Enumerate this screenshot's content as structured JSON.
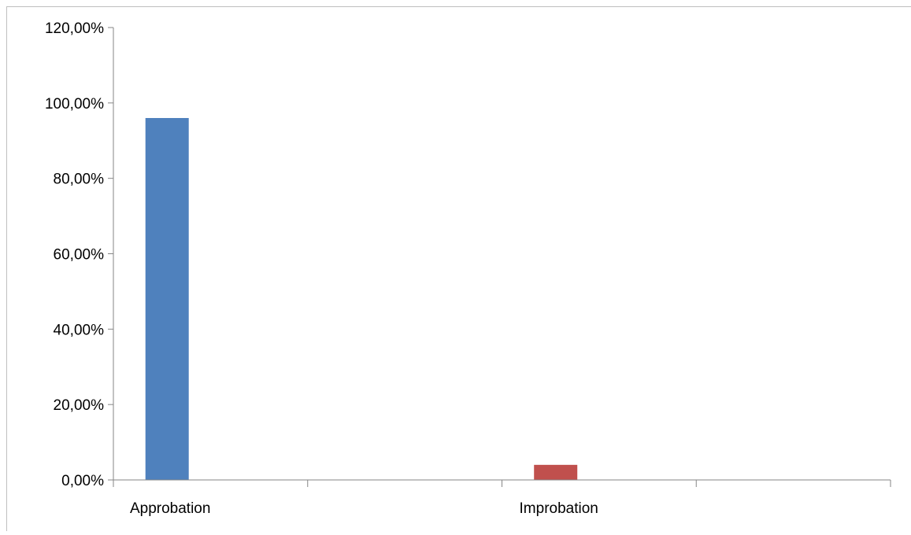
{
  "chart_data": {
    "type": "bar",
    "categories": [
      "Approbation",
      "Improbation"
    ],
    "values": [
      96,
      4
    ],
    "colors": [
      "#4f81bd",
      "#c0504d"
    ],
    "ylim": [
      0,
      120
    ],
    "yticks": [
      0,
      20,
      40,
      60,
      80,
      100,
      120
    ],
    "ytick_labels": [
      "0,00%",
      "20,00%",
      "40,00%",
      "60,00%",
      "80,00%",
      "100,00%",
      "120,00%"
    ],
    "title": "",
    "xlabel": "",
    "ylabel": "",
    "grid": false,
    "legend": "none"
  }
}
